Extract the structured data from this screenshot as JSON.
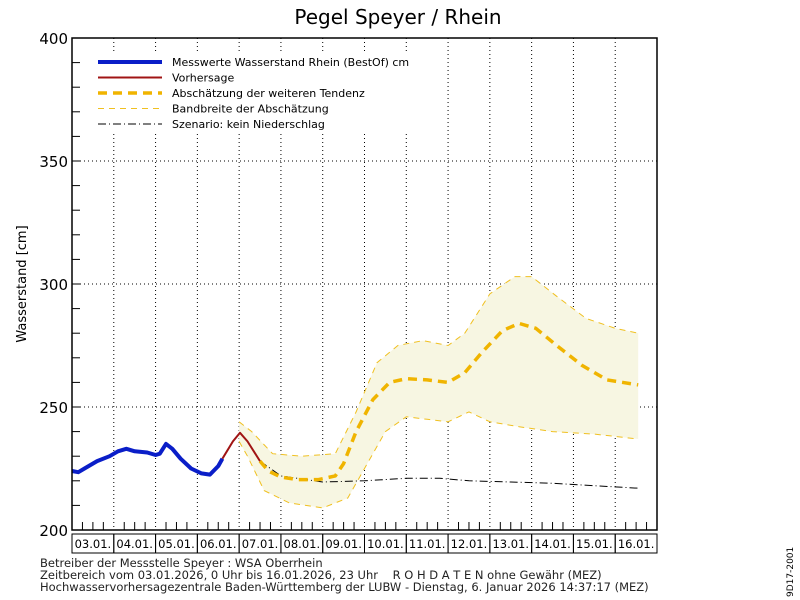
{
  "chart_data": {
    "type": "line",
    "title": "Pegel Speyer / Rhein",
    "ylabel": "Wasserstand [cm]",
    "xlabel": "",
    "ylim": [
      200,
      400
    ],
    "yticks": [
      200,
      250,
      300,
      350,
      400
    ],
    "x_unit": "days since 03.01.2026 00:00",
    "xlim": [
      0,
      14
    ],
    "categories": [
      "03.01.",
      "04.01.",
      "05.01.",
      "06.01.",
      "07.01.",
      "08.01.",
      "09.01.",
      "10.01.",
      "11.01.",
      "12.01.",
      "13.01.",
      "14.01.",
      "15.01.",
      "16.01."
    ],
    "grid": true,
    "legend_position": "top-left",
    "series": [
      {
        "name": "Messwerte Wasserstand Rhein (BestOf)  cm",
        "style": "measured",
        "color": "#0a1ec8",
        "points": [
          [
            0,
            224
          ],
          [
            0.15,
            223.5
          ],
          [
            0.3,
            225
          ],
          [
            0.6,
            228
          ],
          [
            0.9,
            230
          ],
          [
            1.1,
            232
          ],
          [
            1.3,
            233
          ],
          [
            1.5,
            232
          ],
          [
            1.8,
            231.5
          ],
          [
            2.0,
            230.5
          ],
          [
            2.1,
            231
          ],
          [
            2.25,
            235
          ],
          [
            2.4,
            233
          ],
          [
            2.6,
            229
          ],
          [
            2.85,
            225
          ],
          [
            3.1,
            223
          ],
          [
            3.3,
            222.5
          ],
          [
            3.5,
            226
          ],
          [
            3.6,
            229
          ]
        ]
      },
      {
        "name": "Vorhersage",
        "style": "forecast",
        "color": "#a01414",
        "points": [
          [
            3.6,
            229
          ],
          [
            3.85,
            236
          ],
          [
            4.02,
            239.5
          ],
          [
            4.2,
            236
          ],
          [
            4.5,
            228
          ]
        ]
      },
      {
        "name": "Abschätzung der weiteren Tendenz",
        "style": "tendency",
        "color": "#f0b400",
        "points": [
          [
            4.5,
            228
          ],
          [
            4.7,
            224
          ],
          [
            5.0,
            221.5
          ],
          [
            5.4,
            220.5
          ],
          [
            5.9,
            220.5
          ],
          [
            6.3,
            222
          ],
          [
            6.5,
            227
          ],
          [
            6.8,
            240
          ],
          [
            7.2,
            253
          ],
          [
            7.6,
            260
          ],
          [
            8.0,
            261.5
          ],
          [
            8.5,
            261
          ],
          [
            9.0,
            260
          ],
          [
            9.4,
            264
          ],
          [
            9.8,
            272
          ],
          [
            10.3,
            281
          ],
          [
            10.7,
            284
          ],
          [
            11.1,
            282
          ],
          [
            11.6,
            275
          ],
          [
            12.2,
            267
          ],
          [
            12.8,
            261
          ],
          [
            13.55,
            259
          ]
        ]
      },
      {
        "name": "Bandbreite der Abschätzung",
        "style": "band",
        "color": "#f0c020",
        "upper": [
          [
            4.0,
            244
          ],
          [
            4.3,
            240
          ],
          [
            4.8,
            231
          ],
          [
            5.5,
            230
          ],
          [
            6.3,
            231
          ],
          [
            6.8,
            248
          ],
          [
            7.3,
            268
          ],
          [
            7.8,
            275
          ],
          [
            8.4,
            277
          ],
          [
            9.0,
            275
          ],
          [
            9.4,
            280
          ],
          [
            10.0,
            296
          ],
          [
            10.6,
            303
          ],
          [
            11.0,
            303
          ],
          [
            11.6,
            295
          ],
          [
            12.3,
            286
          ],
          [
            13.0,
            282
          ],
          [
            13.55,
            280
          ]
        ],
        "lower": [
          [
            4.0,
            236
          ],
          [
            4.2,
            230
          ],
          [
            4.6,
            216
          ],
          [
            5.2,
            211
          ],
          [
            6.0,
            209
          ],
          [
            6.6,
            213
          ],
          [
            7.0,
            225
          ],
          [
            7.5,
            240
          ],
          [
            8.0,
            246
          ],
          [
            8.5,
            245
          ],
          [
            9.0,
            244
          ],
          [
            9.5,
            248
          ],
          [
            10.0,
            244
          ],
          [
            10.7,
            242
          ],
          [
            11.5,
            240
          ],
          [
            12.5,
            239
          ],
          [
            13.55,
            237
          ]
        ]
      },
      {
        "name": "Szenario: kein Niederschlag",
        "style": "scenario",
        "color": "#000000",
        "points": [
          [
            4.5,
            228
          ],
          [
            5.0,
            222
          ],
          [
            6.0,
            219.5
          ],
          [
            7.0,
            220
          ],
          [
            8.0,
            221
          ],
          [
            8.8,
            221
          ],
          [
            9.5,
            220
          ],
          [
            10.5,
            219.5
          ],
          [
            11.5,
            219
          ],
          [
            12.5,
            218
          ],
          [
            13.55,
            217
          ]
        ]
      }
    ]
  },
  "footer": {
    "line1": "Betreiber der Messstelle Speyer : WSA Oberrhein",
    "line2": "Zeitbereich vom 03.01.2026, 0 Uhr bis 16.01.2026, 23 Uhr    R O H D A T E N ohne Gewähr (MEZ)",
    "line3": "Hochwasservorhersagezentrale Baden-Württemberg der LUBW - Dienstag, 6. Januar 2026 14:37:17 (MEZ)",
    "code": "9D17-2001"
  }
}
